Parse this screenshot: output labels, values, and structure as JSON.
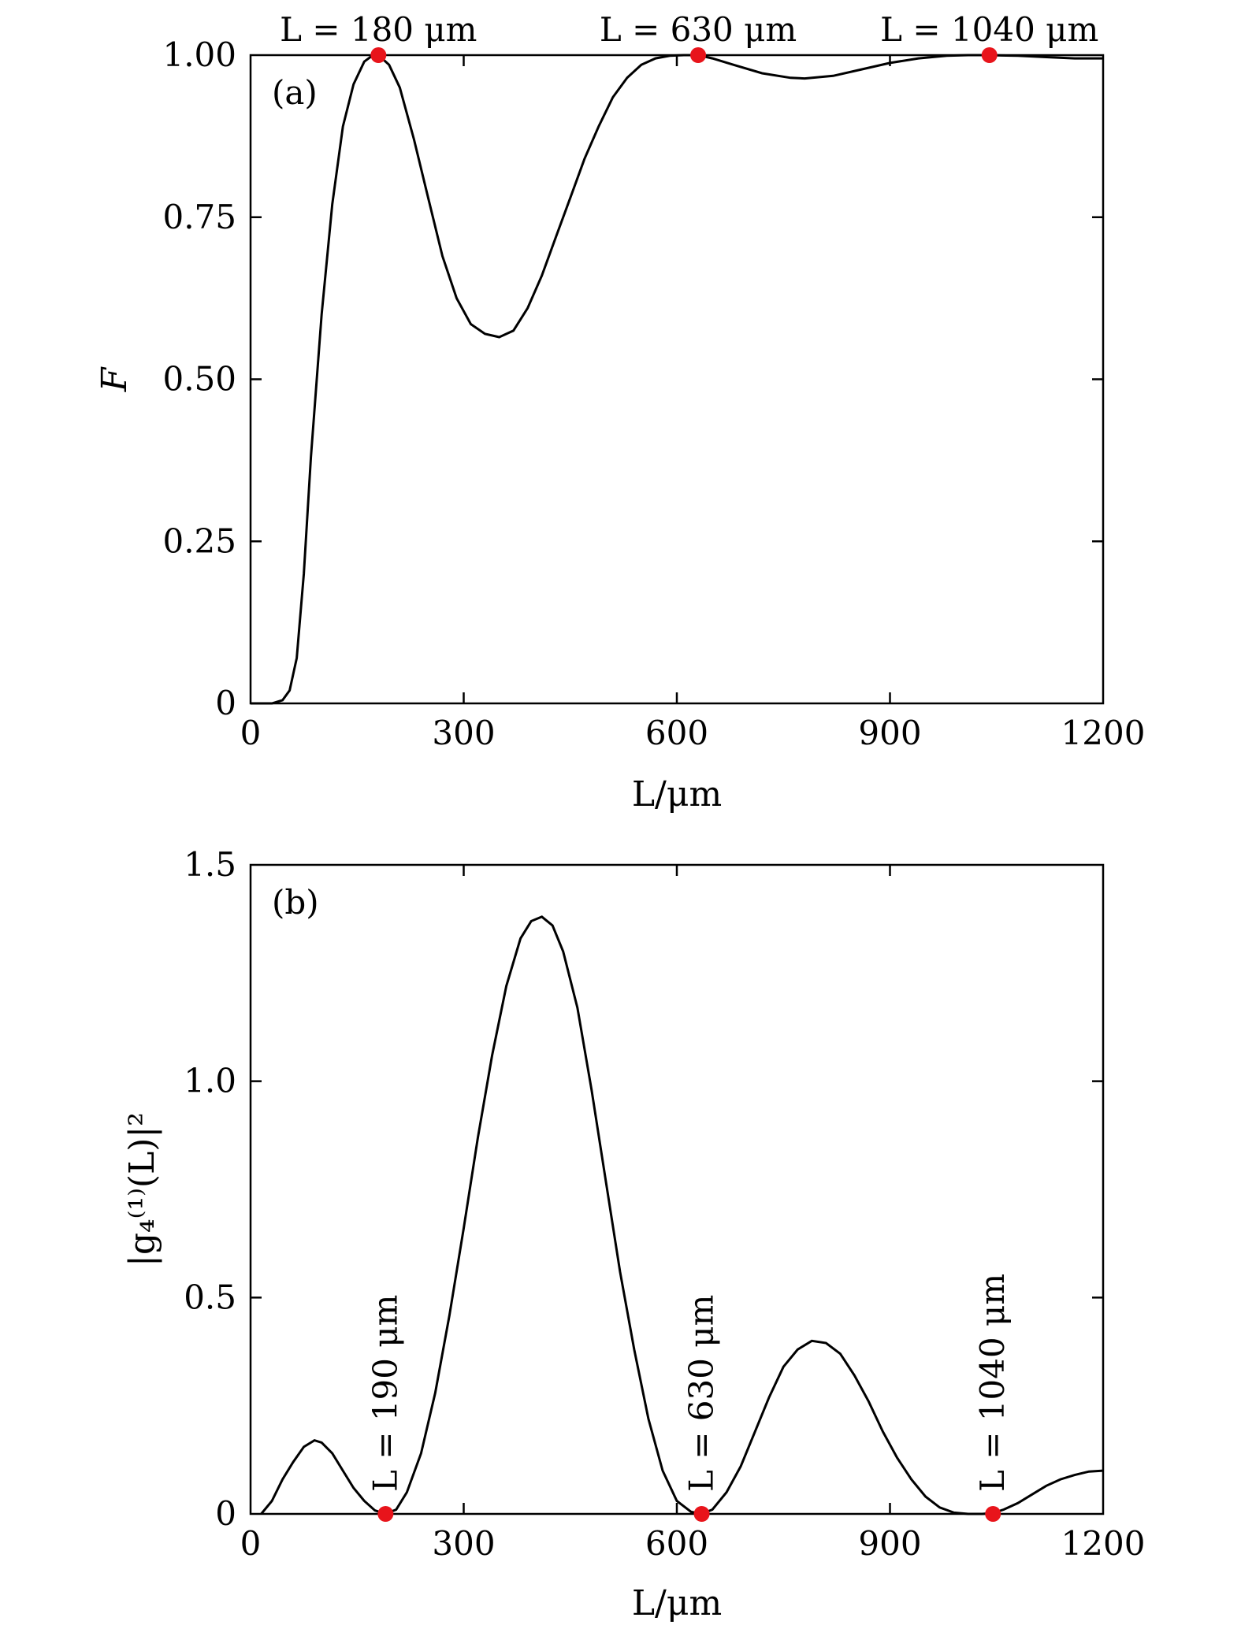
{
  "colors": {
    "curve": "#000000",
    "marker": "#e8141b",
    "frame": "#000000"
  },
  "chart_data": [
    {
      "type": "line",
      "panel_label": "(a)",
      "xlabel": "L/μm",
      "ylabel": "F",
      "xlim": [
        0,
        1200
      ],
      "ylim": [
        0,
        1.0
      ],
      "xticks": [
        0,
        300,
        600,
        900,
        1200
      ],
      "xtick_labels": [
        "0",
        "300",
        "600",
        "900",
        "1200"
      ],
      "yticks": [
        0,
        0.25,
        0.5,
        0.75,
        1.0
      ],
      "ytick_labels": [
        "0",
        "0.25",
        "0.50",
        "0.75",
        "1.00"
      ],
      "grid": false,
      "series": [
        {
          "x": [
            0,
            30,
            45,
            55,
            65,
            75,
            85,
            100,
            115,
            130,
            145,
            160,
            170,
            180,
            195,
            210,
            230,
            250,
            270,
            290,
            310,
            330,
            350,
            370,
            390,
            410,
            430,
            450,
            470,
            490,
            510,
            530,
            550,
            570,
            590,
            610,
            630,
            650,
            680,
            720,
            760,
            780,
            820,
            860,
            900,
            940,
            980,
            1010,
            1040,
            1080,
            1120,
            1160,
            1200
          ],
          "y": [
            0,
            0.0,
            0.005,
            0.02,
            0.07,
            0.2,
            0.38,
            0.6,
            0.77,
            0.89,
            0.955,
            0.99,
            0.998,
            1.0,
            0.985,
            0.95,
            0.87,
            0.78,
            0.69,
            0.625,
            0.585,
            0.57,
            0.565,
            0.575,
            0.61,
            0.66,
            0.72,
            0.78,
            0.84,
            0.89,
            0.935,
            0.965,
            0.985,
            0.995,
            0.999,
            1.0,
            1.0,
            0.995,
            0.985,
            0.972,
            0.965,
            0.964,
            0.968,
            0.978,
            0.988,
            0.995,
            0.999,
            1.0,
            1.0,
            0.999,
            0.997,
            0.995,
            0.995
          ]
        }
      ],
      "points": [
        {
          "x": 180,
          "y": 1.0,
          "label": "L = 180 μm"
        },
        {
          "x": 630,
          "y": 1.0,
          "label": "L = 630 μm"
        },
        {
          "x": 1040,
          "y": 1.0,
          "label": "L = 1040 μm"
        }
      ]
    },
    {
      "type": "line",
      "panel_label": "(b)",
      "xlabel": "L/μm",
      "ylabel": "|g₄⁽¹⁾(L)|²",
      "xlim": [
        0,
        1200
      ],
      "ylim": [
        0,
        1.5
      ],
      "xticks": [
        0,
        300,
        600,
        900,
        1200
      ],
      "xtick_labels": [
        "0",
        "300",
        "600",
        "900",
        "1200"
      ],
      "yticks": [
        0,
        0.5,
        1.0,
        1.5
      ],
      "ytick_labels": [
        "0",
        "0.5",
        "1.0",
        "1.5"
      ],
      "grid": false,
      "series": [
        {
          "x": [
            15,
            30,
            45,
            60,
            75,
            90,
            100,
            115,
            130,
            145,
            160,
            175,
            190,
            205,
            220,
            240,
            260,
            280,
            300,
            320,
            340,
            360,
            380,
            395,
            410,
            425,
            440,
            460,
            480,
            500,
            520,
            540,
            560,
            580,
            600,
            620,
            635,
            650,
            670,
            690,
            710,
            730,
            750,
            770,
            790,
            810,
            830,
            850,
            870,
            890,
            910,
            930,
            950,
            970,
            990,
            1010,
            1030,
            1045,
            1060,
            1080,
            1100,
            1120,
            1140,
            1160,
            1180,
            1200
          ],
          "y": [
            0.0,
            0.03,
            0.08,
            0.12,
            0.155,
            0.17,
            0.165,
            0.14,
            0.1,
            0.06,
            0.03,
            0.008,
            0.0,
            0.01,
            0.05,
            0.14,
            0.28,
            0.46,
            0.66,
            0.87,
            1.06,
            1.22,
            1.33,
            1.37,
            1.38,
            1.36,
            1.3,
            1.17,
            0.98,
            0.77,
            0.56,
            0.38,
            0.22,
            0.1,
            0.03,
            0.005,
            0.0,
            0.01,
            0.05,
            0.11,
            0.19,
            0.27,
            0.34,
            0.38,
            0.4,
            0.395,
            0.37,
            0.32,
            0.26,
            0.19,
            0.13,
            0.08,
            0.04,
            0.015,
            0.003,
            0.0,
            0.0,
            0.002,
            0.01,
            0.025,
            0.045,
            0.065,
            0.08,
            0.09,
            0.098,
            0.1
          ]
        }
      ],
      "points": [
        {
          "x": 190,
          "y": 0.0,
          "label": "L = 190 μm"
        },
        {
          "x": 635,
          "y": 0.0,
          "label": "L = 630 μm"
        },
        {
          "x": 1045,
          "y": 0.0,
          "label": "L = 1040 μm"
        }
      ]
    }
  ]
}
